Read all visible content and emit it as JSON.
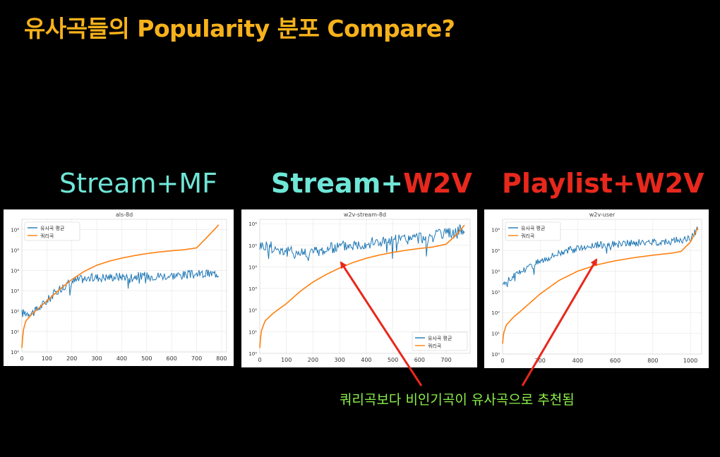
{
  "slide": {
    "title": "유사곡들의 Popularity 분포 Compare?",
    "note": "쿼리곡보다 비인기곡이 유사곡으로 추천됨",
    "labels": {
      "panel1": "Stream+MF",
      "panel2_part1": "Stream+",
      "panel2_part2": "W2V",
      "panel3": "Playlist+W2V"
    },
    "colors": {
      "title": "#f7b21b",
      "teal": "#6fe6d6",
      "red": "#e8281d",
      "note": "#8cf04a",
      "series_similar": "#1f77b4",
      "series_query": "#ff7f0e"
    }
  },
  "chart_data": [
    {
      "type": "line",
      "title": "als-8d",
      "legend": "top-left",
      "series_names": [
        "유사곡 평균",
        "쿼리곡"
      ],
      "xticks": [
        "0",
        "100",
        "200",
        "300",
        "400",
        "500",
        "600",
        "700",
        "800"
      ],
      "yticks": [
        "10⁰",
        "10¹",
        "10²",
        "10³",
        "10⁴",
        "10⁵",
        "10⁶"
      ],
      "xlim": [
        0,
        820
      ],
      "ylim_log10": [
        0,
        6.5
      ],
      "grid": true,
      "query_curve": [
        [
          0,
          0.2
        ],
        [
          5,
          1
        ],
        [
          15,
          1.5
        ],
        [
          40,
          1.85
        ],
        [
          100,
          2.5
        ],
        [
          150,
          3.05
        ],
        [
          200,
          3.55
        ],
        [
          250,
          3.95
        ],
        [
          300,
          4.25
        ],
        [
          350,
          4.45
        ],
        [
          400,
          4.6
        ],
        [
          450,
          4.72
        ],
        [
          500,
          4.82
        ],
        [
          550,
          4.9
        ],
        [
          600,
          4.96
        ],
        [
          650,
          5.01
        ],
        [
          700,
          5.1
        ],
        [
          740,
          5.6
        ],
        [
          790,
          6.25
        ]
      ],
      "similar_trend": [
        [
          0,
          1.9
        ],
        [
          50,
          1.95
        ],
        [
          100,
          2.5
        ],
        [
          150,
          3.1
        ],
        [
          200,
          3.45
        ],
        [
          250,
          3.6
        ],
        [
          300,
          3.65
        ],
        [
          400,
          3.7
        ],
        [
          500,
          3.72
        ],
        [
          600,
          3.75
        ],
        [
          700,
          3.8
        ],
        [
          790,
          3.85
        ]
      ],
      "similar_start": 0,
      "similar_noise": 0.22
    },
    {
      "type": "line",
      "title": "w2v-stream-8d",
      "legend": "bottom-right",
      "series_names": [
        "유사곡 평균",
        "쿼리곡"
      ],
      "xticks": [
        "0",
        "100",
        "200",
        "300",
        "400",
        "500",
        "600",
        "700"
      ],
      "yticks": [
        "10⁰",
        "10¹",
        "10²",
        "10³",
        "10⁴",
        "10⁵",
        "10⁶"
      ],
      "xlim": [
        0,
        790
      ],
      "ylim_log10": [
        0,
        6.2
      ],
      "grid": true,
      "query_curve": [
        [
          0,
          0.25
        ],
        [
          5,
          1
        ],
        [
          20,
          1.5
        ],
        [
          50,
          1.85
        ],
        [
          100,
          2.3
        ],
        [
          150,
          2.85
        ],
        [
          200,
          3.3
        ],
        [
          250,
          3.65
        ],
        [
          300,
          3.95
        ],
        [
          350,
          4.2
        ],
        [
          400,
          4.4
        ],
        [
          450,
          4.55
        ],
        [
          500,
          4.67
        ],
        [
          550,
          4.77
        ],
        [
          600,
          4.85
        ],
        [
          650,
          4.92
        ],
        [
          700,
          5.05
        ],
        [
          740,
          5.5
        ],
        [
          770,
          5.95
        ]
      ],
      "similar_trend": [
        [
          0,
          5.0
        ],
        [
          50,
          4.9
        ],
        [
          100,
          4.7
        ],
        [
          150,
          4.65
        ],
        [
          200,
          4.7
        ],
        [
          250,
          4.8
        ],
        [
          300,
          4.95
        ],
        [
          400,
          5.1
        ],
        [
          500,
          5.22
        ],
        [
          600,
          5.35
        ],
        [
          700,
          5.5
        ],
        [
          770,
          5.75
        ]
      ],
      "similar_start": 0,
      "similar_noise": 0.28
    },
    {
      "type": "line",
      "title": "w2v-user",
      "legend": "top-left",
      "series_names": [
        "유사곡 평균",
        "쿼리곡"
      ],
      "xticks": [
        "0",
        "200",
        "400",
        "600",
        "800",
        "1000"
      ],
      "yticks": [
        "10⁰",
        "10¹",
        "10²",
        "10³",
        "10⁴",
        "10⁵",
        "10⁶"
      ],
      "xlim": [
        0,
        1060
      ],
      "ylim_log10": [
        0,
        6.5
      ],
      "grid": true,
      "query_curve": [
        [
          0,
          0.5
        ],
        [
          5,
          1
        ],
        [
          20,
          1.4
        ],
        [
          60,
          1.8
        ],
        [
          100,
          2.1
        ],
        [
          150,
          2.5
        ],
        [
          200,
          2.9
        ],
        [
          300,
          3.55
        ],
        [
          400,
          4.0
        ],
        [
          500,
          4.3
        ],
        [
          600,
          4.5
        ],
        [
          700,
          4.65
        ],
        [
          800,
          4.77
        ],
        [
          900,
          4.87
        ],
        [
          950,
          4.95
        ],
        [
          1000,
          5.4
        ],
        [
          1040,
          6.1
        ]
      ],
      "similar_trend": [
        [
          0,
          3.4
        ],
        [
          50,
          3.7
        ],
        [
          100,
          4.0
        ],
        [
          200,
          4.5
        ],
        [
          300,
          4.9
        ],
        [
          400,
          5.1
        ],
        [
          500,
          5.25
        ],
        [
          600,
          5.3
        ],
        [
          700,
          5.35
        ],
        [
          800,
          5.4
        ],
        [
          900,
          5.45
        ],
        [
          1000,
          5.55
        ],
        [
          1040,
          6.05
        ]
      ],
      "similar_start": 0,
      "similar_noise": 0.18
    }
  ]
}
